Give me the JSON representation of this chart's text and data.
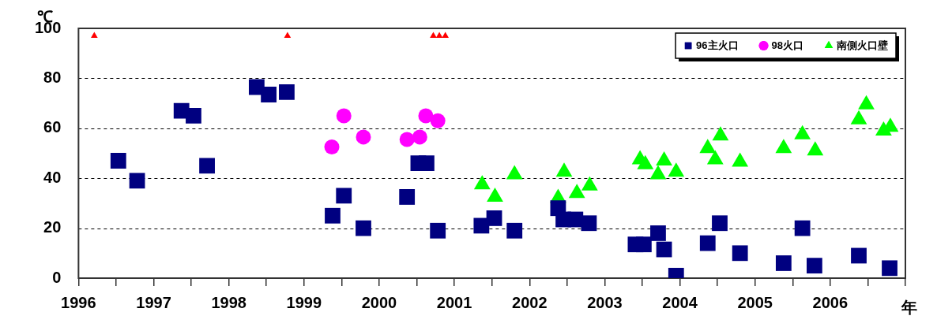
{
  "chart_data": {
    "type": "scatter",
    "xlabel": "年",
    "ylabel": "℃",
    "xlim": [
      1996,
      2007
    ],
    "xticks": [
      1996,
      {
        "value": 1996.5,
        "label": null
      },
      1997,
      {
        "value": 1997.5,
        "label": null
      },
      1998,
      {
        "value": 1998.5,
        "label": null
      },
      1999,
      {
        "value": 1999.5,
        "label": null
      },
      2000,
      {
        "value": 2000.5,
        "label": null
      },
      2001,
      {
        "value": 2001.5,
        "label": null
      },
      2002,
      {
        "value": 2002.5,
        "label": null
      },
      2003,
      {
        "value": 2003.5,
        "label": null
      },
      2004,
      {
        "value": 2004.5,
        "label": null
      },
      2005,
      {
        "value": 2005.5,
        "label": null
      },
      2006,
      {
        "value": 2006.5,
        "label": null
      },
      {
        "value": 2007,
        "label": null
      }
    ],
    "ylim": [
      0,
      100
    ],
    "yticks": [
      0,
      20,
      40,
      60,
      80,
      100
    ],
    "grid": "y",
    "legend": "top right",
    "series": [
      {
        "name": "96主火口",
        "color": "#000080",
        "marker": "square",
        "x": [
          1996.53,
          1996.78,
          1997.37,
          1997.53,
          1997.71,
          1998.37,
          1998.53,
          1998.77,
          1999.38,
          1999.53,
          1999.79,
          2000.37,
          2000.52,
          2000.63,
          2000.78,
          2001.36,
          2001.53,
          2001.8,
          2002.38,
          2002.45,
          2002.61,
          2002.79,
          2003.41,
          2003.52,
          2003.71,
          2003.79,
          2003.95,
          2004.37,
          2004.53,
          2004.8,
          2005.38,
          2005.63,
          2005.79,
          2006.38,
          2006.79
        ],
        "values": [
          47,
          39,
          67,
          65,
          45,
          76.5,
          73.5,
          74.5,
          25,
          33,
          20,
          32.5,
          46,
          46,
          19,
          21,
          24,
          19,
          28,
          23.5,
          23.5,
          22,
          13.5,
          13.5,
          18,
          11.5,
          1,
          14,
          22,
          10,
          6,
          20,
          5,
          9,
          4
        ]
      },
      {
        "name": "98火口",
        "color": "#ff00ff",
        "marker": "circle",
        "x": [
          1999.37,
          1999.53,
          1999.79,
          2000.37,
          2000.54,
          2000.62,
          2000.78
        ],
        "values": [
          52.5,
          65,
          56.5,
          55.5,
          56.5,
          65,
          63
        ]
      },
      {
        "name": "南側火口壁",
        "color": "#00ff00",
        "marker": "triangle",
        "x": [
          2001.37,
          2001.54,
          2001.8,
          2002.38,
          2002.46,
          2002.63,
          2002.8,
          2003.47,
          2003.54,
          2003.71,
          2003.79,
          2003.95,
          2004.37,
          2004.47,
          2004.54,
          2004.8,
          2005.38,
          2005.63,
          2005.8,
          2006.38,
          2006.48,
          2006.71,
          2006.8
        ],
        "values": [
          37.5,
          32.5,
          41.5,
          32,
          42.5,
          34,
          37,
          47.5,
          45.5,
          41.5,
          47,
          42.5,
          52,
          47.5,
          57,
          46.5,
          52,
          57.5,
          51,
          63.5,
          69.5,
          59,
          60.5
        ]
      },
      {
        "color": "#ff0000",
        "marker": "triangle",
        "x": [
          1996.21,
          1998.78,
          2000.72,
          2000.8,
          2000.88
        ],
        "values": [
          97,
          97,
          97,
          97,
          97
        ]
      }
    ]
  }
}
